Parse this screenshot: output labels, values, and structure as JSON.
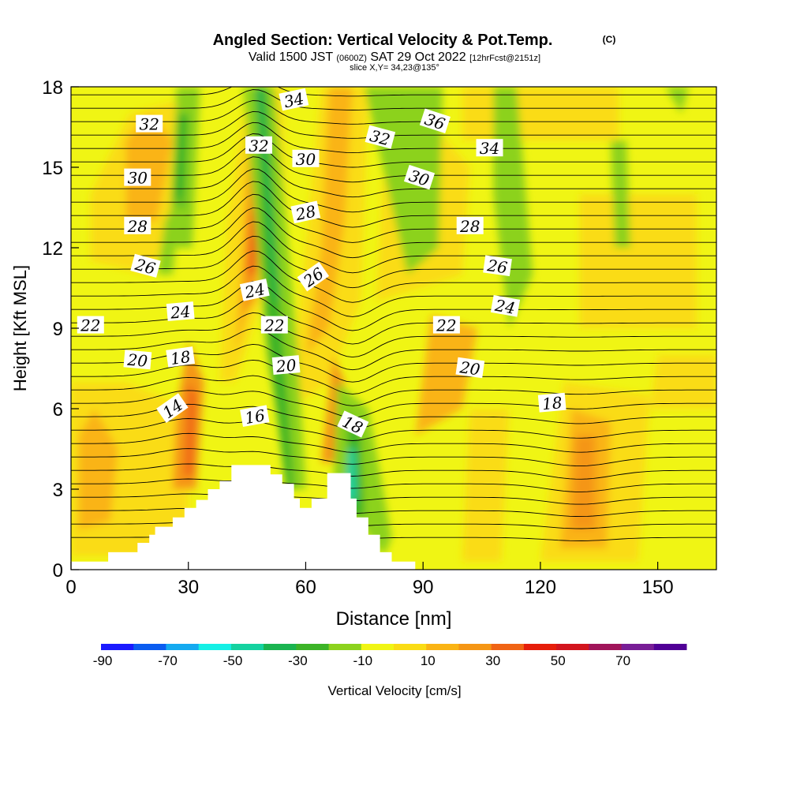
{
  "chart_data": {
    "type": "heatmap",
    "title": "Angled Section: Vertical Velocity & Pot.Temp.",
    "title_mark": "(C)",
    "subtitle_parts": {
      "valid": "Valid 1500 JST",
      "zulu": "(0600Z)",
      "date": "SAT 29 Oct 2022",
      "fcst": "[12hrFcst@2151z]"
    },
    "slice_label": "slice X,Y= 34,23@135°",
    "xlabel": "Distance [nm]",
    "ylabel": "Height [Kft MSL]",
    "xlim": [
      0,
      165
    ],
    "ylim": [
      0,
      18
    ],
    "x_ticks": [
      "0",
      "30",
      "60",
      "90",
      "120",
      "150"
    ],
    "y_ticks": [
      "0",
      "3",
      "6",
      "9",
      "12",
      "15",
      "18"
    ],
    "colorbar": {
      "label": "Vertical Velocity [cm/s]",
      "tick_labels": [
        "-90",
        "-70",
        "-50",
        "-30",
        "-10",
        "10",
        "30",
        "50",
        "70"
      ],
      "colors": [
        "#1a1aff",
        "#0a5cf0",
        "#14aaf0",
        "#14f0e6",
        "#14d2a0",
        "#1ab450",
        "#3cb428",
        "#8cd21e",
        "#f0f514",
        "#fadc14",
        "#fab414",
        "#f59614",
        "#f06414",
        "#e61e0a",
        "#d2141e",
        "#a0145a",
        "#781e96",
        "#500096"
      ]
    },
    "background_color": "#f0f514",
    "theta_contour_labels": [
      "14",
      "16",
      "18",
      "18",
      "18",
      "20",
      "20",
      "20",
      "22",
      "22",
      "22",
      "24",
      "24",
      "24",
      "26",
      "26",
      "26",
      "28",
      "28",
      "28",
      "30",
      "30",
      "30",
      "32",
      "32",
      "32",
      "34",
      "34",
      "36"
    ],
    "terrain": [
      [
        0,
        0.3
      ],
      [
        9.5,
        0.3
      ],
      [
        9.5,
        0.65
      ],
      [
        14.5,
        0.65
      ],
      [
        14.5,
        0.65
      ],
      [
        17,
        0.65
      ],
      [
        17,
        1.0
      ],
      [
        20,
        1.0
      ],
      [
        20,
        1.3
      ],
      [
        21.5,
        1.3
      ],
      [
        21.5,
        1.6
      ],
      [
        26,
        1.6
      ],
      [
        26,
        1.95
      ],
      [
        29,
        1.95
      ],
      [
        29,
        2.3
      ],
      [
        32,
        2.3
      ],
      [
        32,
        2.6
      ],
      [
        35,
        2.6
      ],
      [
        35,
        3.0
      ],
      [
        38,
        3.0
      ],
      [
        38,
        3.3
      ],
      [
        41,
        3.3
      ],
      [
        41,
        3.9
      ],
      [
        51,
        3.9
      ],
      [
        51,
        3.55
      ],
      [
        54,
        3.55
      ],
      [
        54,
        3.2
      ],
      [
        57,
        3.2
      ],
      [
        57,
        2.65
      ],
      [
        58.5,
        2.65
      ],
      [
        58.5,
        2.3
      ],
      [
        61.5,
        2.3
      ],
      [
        61.5,
        2.65
      ],
      [
        65.5,
        2.65
      ],
      [
        65.5,
        3.6
      ],
      [
        71.5,
        3.6
      ],
      [
        71.5,
        2.65
      ],
      [
        73,
        2.65
      ],
      [
        73,
        1.95
      ],
      [
        76,
        1.95
      ],
      [
        76,
        1.3
      ],
      [
        79,
        1.3
      ],
      [
        79,
        0.65
      ],
      [
        82,
        0.65
      ],
      [
        82,
        0.3
      ],
      [
        88,
        0.3
      ],
      [
        88,
        0
      ]
    ]
  }
}
